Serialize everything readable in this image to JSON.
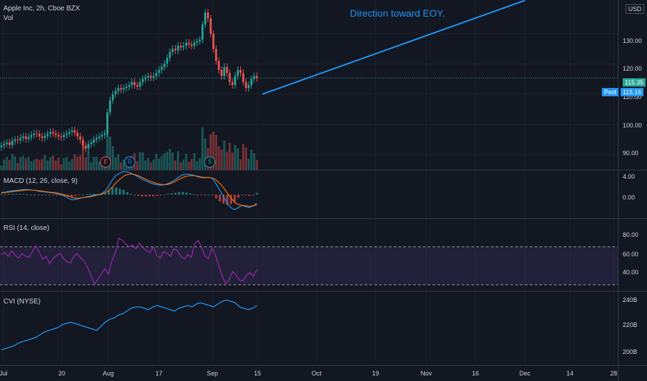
{
  "header": {
    "symbol_line": "Apple Inc, 2h, Cboe BZX",
    "volume_label": "Vol",
    "currency": "USD"
  },
  "annotation": "Direction toward EOY.",
  "price_axis": [
    "130.00",
    "120.00",
    "110.00",
    "100.00",
    "90.00"
  ],
  "price_tag": {
    "value": "115.35",
    "color": "#26a69a"
  },
  "post_tag": {
    "label": "Post",
    "value": "115.16",
    "color": "#2196f3"
  },
  "macd": {
    "label": "MACD (12, 26, close, 9)",
    "axis": [
      "4.00",
      "0.00"
    ]
  },
  "rsi": {
    "label": "RSI (14, close)",
    "axis": [
      "80.00",
      "60.00",
      "40.00"
    ]
  },
  "cvi": {
    "label": "CVI (NYSE)",
    "axis": [
      "240B",
      "220B",
      "200B"
    ]
  },
  "time_axis": [
    "Jul",
    "20",
    "Aug",
    "17",
    "Sep",
    "15",
    "Oct",
    "19",
    "Nov",
    "16",
    "Dec",
    "14",
    "28"
  ],
  "event_markers": [
    "E",
    "D",
    "S"
  ],
  "chart_data": {
    "type": "line",
    "title": "",
    "close": [
      93,
      93.5,
      94,
      93.2,
      94.5,
      95,
      94.8,
      95.5,
      96,
      95.2,
      95.8,
      96.5,
      97,
      96.8,
      96,
      95.5,
      96.2,
      96.8,
      97.5,
      97,
      96.5,
      96,
      95.8,
      96.5,
      97,
      97.5,
      98,
      97.2,
      96,
      95,
      93,
      92,
      93.5,
      94,
      95,
      95.5,
      96,
      96.5,
      97,
      104,
      108,
      110,
      111,
      112,
      111.5,
      112,
      112.5,
      113,
      114,
      113,
      112.5,
      114,
      115,
      115.5,
      116,
      115.5,
      116,
      117,
      118,
      119,
      120,
      122,
      124,
      125,
      124.5,
      126,
      125.5,
      126,
      127,
      126.5,
      126,
      127,
      127.5,
      128,
      133,
      137,
      135,
      130,
      125,
      121,
      118,
      116,
      119,
      117,
      114,
      113,
      116,
      118,
      117,
      114,
      112,
      113,
      115,
      116,
      115.35
    ],
    "price_ylim": [
      85,
      140
    ],
    "price_axis_ticks": [
      90,
      100,
      110,
      120,
      130
    ],
    "last_price": 115.35,
    "post_price": 115.16,
    "trendline": {
      "from": {
        "date": "Sep 15",
        "price": 110
      },
      "to": {
        "date": "Dec 1",
        "price": 141
      }
    },
    "macd_line": [
      0.5,
      0.6,
      0.8,
      0.9,
      1,
      1.1,
      1.2,
      1.2,
      1.1,
      1,
      0.8,
      0.7,
      0.6,
      0.5,
      0.4,
      0.2,
      0,
      -0.3,
      -0.8,
      -1.2,
      -1.1,
      -0.9,
      -0.7,
      -0.5,
      -0.3,
      -0.1,
      0,
      0.2,
      0.8,
      2,
      3.5,
      4.5,
      5,
      5.4,
      5.3,
      5,
      4.6,
      4.1,
      3.6,
      3.2,
      2.8,
      2.5,
      2.3,
      2.2,
      2.3,
      2.6,
      3,
      3.5,
      4.2,
      4.6,
      4.8,
      4.7,
      4.5,
      4.2,
      4,
      3.9,
      4,
      3.8,
      2.5,
      1,
      -0.5,
      -2,
      -3,
      -3.5,
      -3,
      -2.5,
      -2.8,
      -3,
      -2.6,
      -2
    ],
    "macd_signal": [
      0.4,
      0.5,
      0.6,
      0.7,
      0.8,
      0.9,
      1,
      1.1,
      1.1,
      1,
      0.9,
      0.8,
      0.7,
      0.6,
      0.5,
      0.4,
      0.2,
      0,
      -0.3,
      -0.6,
      -0.8,
      -0.8,
      -0.7,
      -0.6,
      -0.5,
      -0.3,
      -0.1,
      0.1,
      0.4,
      1,
      1.8,
      2.8,
      3.6,
      4.3,
      4.7,
      4.8,
      4.7,
      4.4,
      4,
      3.6,
      3.2,
      2.9,
      2.6,
      2.4,
      2.3,
      2.4,
      2.7,
      3.1,
      3.6,
      4,
      4.3,
      4.4,
      4.4,
      4.3,
      4.1,
      4,
      4,
      3.9,
      3.4,
      2.6,
      1.6,
      0.4,
      -0.8,
      -1.8,
      -2.3,
      -2.5,
      -2.6,
      -2.7,
      -2.6,
      -2.4
    ],
    "macd_ylim": [
      -5,
      5
    ],
    "rsi_values": [
      62,
      64,
      60,
      66,
      61,
      58,
      63,
      60,
      59,
      65,
      71,
      64,
      57,
      60,
      52,
      58,
      61,
      63,
      58,
      54,
      53,
      60,
      63,
      58,
      55,
      48,
      39,
      31,
      36,
      42,
      47,
      41,
      55,
      64,
      79,
      77,
      73,
      70,
      72,
      68,
      74,
      69,
      66,
      64,
      70,
      61,
      58,
      65,
      63,
      60,
      68,
      66,
      60,
      57,
      62,
      59,
      73,
      77,
      69,
      60,
      58,
      69,
      61,
      50,
      39,
      31,
      36,
      44,
      40,
      35,
      34,
      40,
      43,
      39,
      46
    ],
    "rsi_ylim": [
      25,
      95
    ],
    "rsi_bands": [
      70,
      30
    ],
    "cvi_values": [
      205,
      206,
      207,
      208,
      210,
      211,
      212,
      213,
      214,
      216,
      218,
      219,
      220,
      221,
      223,
      224,
      225,
      224,
      223,
      222,
      221,
      220,
      219,
      222,
      225,
      227,
      228,
      230,
      231,
      233,
      235,
      236,
      236,
      235,
      234,
      236,
      237,
      236,
      235,
      234,
      233,
      235,
      236,
      237,
      236,
      238,
      239,
      238,
      237,
      236,
      238,
      240,
      241,
      240,
      239,
      236,
      235,
      234,
      235,
      237
    ],
    "cvi_ylim": [
      195,
      245
    ]
  }
}
